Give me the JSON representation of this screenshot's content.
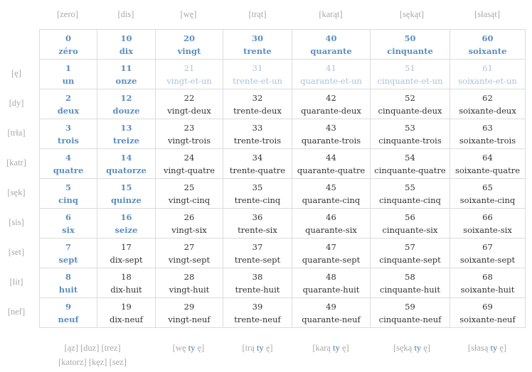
{
  "column_headers": [
    "[zero]",
    "[dis]",
    "[wę]",
    "[trąt]",
    "[karąt]",
    "[sękąt]",
    "[słasąt]"
  ],
  "row_headers": [
    "",
    "[ę]",
    "[dy]",
    "[trła]",
    "[katr]",
    "[sęk]",
    "[sis]",
    "[set]",
    "[lit]",
    "[nef]"
  ],
  "colors": {
    "blue": "#5b8fc0",
    "faint": "#a9c3dc",
    "gray": "#a8a8a8",
    "text": "#333333"
  },
  "grid": [
    [
      {
        "n": "0",
        "w": "zéro",
        "s": "blue"
      },
      {
        "n": "10",
        "w": "dix",
        "s": "blue"
      },
      {
        "n": "20",
        "w": "vingt",
        "s": "blue"
      },
      {
        "n": "30",
        "w": "trente",
        "s": "blue"
      },
      {
        "n": "40",
        "w": "quarante",
        "s": "blue"
      },
      {
        "n": "50",
        "w": "cinquante",
        "s": "blue"
      },
      {
        "n": "60",
        "w": "soixante",
        "s": "blue"
      }
    ],
    [
      {
        "n": "1",
        "w": "un",
        "s": "blue"
      },
      {
        "n": "11",
        "w": "onze",
        "s": "blue"
      },
      {
        "n": "21",
        "w": "vingt-et-un",
        "s": "faint"
      },
      {
        "n": "31",
        "w": "trente-et-un",
        "s": "faint"
      },
      {
        "n": "41",
        "w": "quarante-et-un",
        "s": "faint"
      },
      {
        "n": "51",
        "w": "cinquante-et-un",
        "s": "faint"
      },
      {
        "n": "61",
        "w": "soixante-et-un",
        "s": "faint"
      }
    ],
    [
      {
        "n": "2",
        "w": "deux",
        "s": "blue"
      },
      {
        "n": "12",
        "w": "douze",
        "s": "blue"
      },
      {
        "n": "22",
        "w": "vingt-deux",
        "s": "plain"
      },
      {
        "n": "32",
        "w": "trente-deux",
        "s": "plain"
      },
      {
        "n": "42",
        "w": "quarante-deux",
        "s": "plain"
      },
      {
        "n": "52",
        "w": "cinquante-deux",
        "s": "plain"
      },
      {
        "n": "62",
        "w": "soixante-deux",
        "s": "plain"
      }
    ],
    [
      {
        "n": "3",
        "w": "trois",
        "s": "blue"
      },
      {
        "n": "13",
        "w": "treize",
        "s": "blue"
      },
      {
        "n": "23",
        "w": "vingt-trois",
        "s": "plain"
      },
      {
        "n": "33",
        "w": "trente-trois",
        "s": "plain"
      },
      {
        "n": "43",
        "w": "quarante-trois",
        "s": "plain"
      },
      {
        "n": "53",
        "w": "cinquante-trois",
        "s": "plain"
      },
      {
        "n": "63",
        "w": "soixante-trois",
        "s": "plain"
      }
    ],
    [
      {
        "n": "4",
        "w": "quatre",
        "s": "blue"
      },
      {
        "n": "14",
        "w": "quatorze",
        "s": "blue"
      },
      {
        "n": "24",
        "w": "vingt-quatre",
        "s": "plain"
      },
      {
        "n": "34",
        "w": "trente-quatre",
        "s": "plain"
      },
      {
        "n": "44",
        "w": "quarante-quatre",
        "s": "plain"
      },
      {
        "n": "54",
        "w": "cinquante-quatre",
        "s": "plain"
      },
      {
        "n": "64",
        "w": "soixante-quatre",
        "s": "plain"
      }
    ],
    [
      {
        "n": "5",
        "w": "cinq",
        "s": "blue"
      },
      {
        "n": "15",
        "w": "quinze",
        "s": "blue"
      },
      {
        "n": "25",
        "w": "vingt-cinq",
        "s": "plain"
      },
      {
        "n": "35",
        "w": "trente-cinq",
        "s": "plain"
      },
      {
        "n": "45",
        "w": "quarante-cinq",
        "s": "plain"
      },
      {
        "n": "55",
        "w": "cinquante-cinq",
        "s": "plain"
      },
      {
        "n": "65",
        "w": "soixante-cinq",
        "s": "plain"
      }
    ],
    [
      {
        "n": "6",
        "w": "six",
        "s": "blue"
      },
      {
        "n": "16",
        "w": "seize",
        "s": "blue"
      },
      {
        "n": "26",
        "w": "vingt-six",
        "s": "plain"
      },
      {
        "n": "36",
        "w": "trente-six",
        "s": "plain"
      },
      {
        "n": "46",
        "w": "quarante-six",
        "s": "plain"
      },
      {
        "n": "56",
        "w": "cinquante-six",
        "s": "plain"
      },
      {
        "n": "66",
        "w": "soixante-six",
        "s": "plain"
      }
    ],
    [
      {
        "n": "7",
        "w": "sept",
        "s": "blue"
      },
      {
        "n": "17",
        "w": "dix-sept",
        "s": "plain"
      },
      {
        "n": "27",
        "w": "vingt-sept",
        "s": "plain"
      },
      {
        "n": "37",
        "w": "trente-sept",
        "s": "plain"
      },
      {
        "n": "47",
        "w": "quarante-sept",
        "s": "plain"
      },
      {
        "n": "57",
        "w": "cinquante-sept",
        "s": "plain"
      },
      {
        "n": "67",
        "w": "soixante-sept",
        "s": "plain"
      }
    ],
    [
      {
        "n": "8",
        "w": "huit",
        "s": "blue"
      },
      {
        "n": "18",
        "w": "dix-huit",
        "s": "plain"
      },
      {
        "n": "28",
        "w": "vingt-huit",
        "s": "plain"
      },
      {
        "n": "38",
        "w": "trente-huit",
        "s": "plain"
      },
      {
        "n": "48",
        "w": "quarante-huit",
        "s": "plain"
      },
      {
        "n": "58",
        "w": "cinquante-huit",
        "s": "plain"
      },
      {
        "n": "68",
        "w": "soixante-huit",
        "s": "plain"
      }
    ],
    [
      {
        "n": "9",
        "w": "neuf",
        "s": "blue"
      },
      {
        "n": "19",
        "w": "dix-neuf",
        "s": "plain"
      },
      {
        "n": "29",
        "w": "vingt-neuf",
        "s": "plain"
      },
      {
        "n": "39",
        "w": "trente-neuf",
        "s": "plain"
      },
      {
        "n": "49",
        "w": "quarante-neuf",
        "s": "plain"
      },
      {
        "n": "59",
        "w": "cinquante-neuf",
        "s": "plain"
      },
      {
        "n": "69",
        "w": "soixante-neuf",
        "s": "plain"
      }
    ]
  ],
  "footer": {
    "teens_line1": "[ąz] [duz] [trez]",
    "teens_line2": "[katorz] [kęz] [sez]",
    "items": [
      {
        "pre": "[wę ",
        "ty": "ty",
        "post": " ę]"
      },
      {
        "pre": "[trą ",
        "ty": "ty",
        "post": " ę]"
      },
      {
        "pre": "[karą ",
        "ty": "ty",
        "post": " ę]"
      },
      {
        "pre": "[sęką ",
        "ty": "ty",
        "post": " ę]"
      },
      {
        "pre": "[słasą ",
        "ty": "ty",
        "post": " ę]"
      }
    ]
  }
}
